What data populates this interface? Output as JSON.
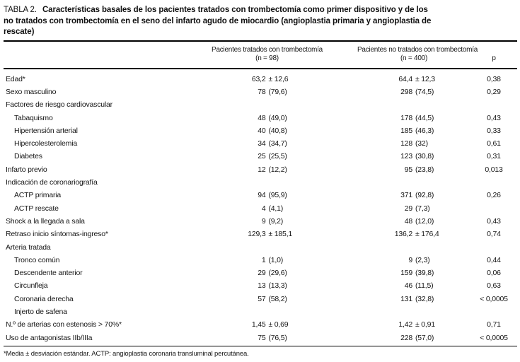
{
  "title": {
    "label": "TABLA 2.",
    "line1": "Características basales de los pacientes tratados con trombectomía como primer dispositivo y de los",
    "line2": "no tratados con trombectomía en el seno del infarto agudo de miocardio (angioplastia primaria y angioplastia de",
    "line3": "rescate)"
  },
  "header": {
    "col1_line1": "Pacientes tratados con trombectomía",
    "col1_line2": "(n = 98)",
    "col2_line1": "Pacientes no tratados con trombectomía",
    "col2_line2": "(n = 400)",
    "p_label": "p"
  },
  "table": {
    "rows": [
      {
        "label": "Edad*",
        "indent": false,
        "c1": "63,2 ± 12,6",
        "c2": "64,4 ± 12,3",
        "p": "0,38"
      },
      {
        "label": "Sexo masculino",
        "indent": false,
        "c1": "78 (79,6)",
        "c2": "298 (74,5)",
        "p": "0,29"
      },
      {
        "label": "Factores de riesgo cardiovascular",
        "indent": false,
        "c1": "",
        "c2": "",
        "p": ""
      },
      {
        "label": "Tabaquismo",
        "indent": true,
        "c1": "48 (49,0)",
        "c2": "178 (44,5)",
        "p": "0,43"
      },
      {
        "label": "Hipertensión arterial",
        "indent": true,
        "c1": "40 (40,8)",
        "c2": "185 (46,3)",
        "p": "0,33"
      },
      {
        "label": "Hipercolesterolemia",
        "indent": true,
        "c1": "34 (34,7)",
        "c2": "128 (32)",
        "p": "0,61"
      },
      {
        "label": "Diabetes",
        "indent": true,
        "c1": "25 (25,5)",
        "c2": "123 (30,8)",
        "p": "0,31"
      },
      {
        "label": "Infarto previo",
        "indent": false,
        "c1": "12 (12,2)",
        "c2": "95 (23,8)",
        "p": "0,013"
      },
      {
        "label": "Indicación de coronariografía",
        "indent": false,
        "c1": "",
        "c2": "",
        "p": ""
      },
      {
        "label": "ACTP primaria",
        "indent": true,
        "c1": "94 (95,9)",
        "c2": "371 (92,8)",
        "p": "0,26"
      },
      {
        "label": "ACTP rescate",
        "indent": true,
        "c1": "4 (4,1)",
        "c2": "29 (7,3)",
        "p": ""
      },
      {
        "label": "Shock a la llegada a sala",
        "indent": false,
        "c1": "9 (9,2)",
        "c2": "48 (12,0)",
        "p": "0,43"
      },
      {
        "label": "Retraso inicio síntomas-ingreso*",
        "indent": false,
        "c1": "129,3 ± 185,1",
        "c2": "136,2 ± 176,4",
        "p": "0,74"
      },
      {
        "label": "Arteria tratada",
        "indent": false,
        "c1": "",
        "c2": "",
        "p": ""
      },
      {
        "label": "Tronco común",
        "indent": true,
        "c1": "1 (1,0)",
        "c2": "9 (2,3)",
        "p": "0,44"
      },
      {
        "label": "Descendente anterior",
        "indent": true,
        "c1": "29 (29,6)",
        "c2": "159 (39,8)",
        "p": "0,06"
      },
      {
        "label": "Circunfleja",
        "indent": true,
        "c1": "13 (13,3)",
        "c2": "46 (11,5)",
        "p": "0,63"
      },
      {
        "label": "Coronaria derecha",
        "indent": true,
        "c1": "57 (58,2)",
        "c2": "131 (32,8)",
        "p": "< 0,0005"
      },
      {
        "label": "Injerto de safena",
        "indent": true,
        "c1": "",
        "c2": "",
        "p": ""
      },
      {
        "label": "N.º de arterias con estenosis > 70%*",
        "indent": false,
        "c1": "1,45 ± 0,69",
        "c2": "1,42 ± 0,91",
        "p": "0,71"
      },
      {
        "label": "Uso de antagonistas IIb/IIIa",
        "indent": false,
        "c1": "75 (76,5)",
        "c2": "228 (57,0)",
        "p": "< 0,0005"
      }
    ]
  },
  "footnote": "*Media ± desviación estándar. ACTP: angioplastia coronaria transluminal percutánea.",
  "colors": {
    "background": "#ffffff",
    "text": "#161616",
    "rule": "#000000"
  }
}
